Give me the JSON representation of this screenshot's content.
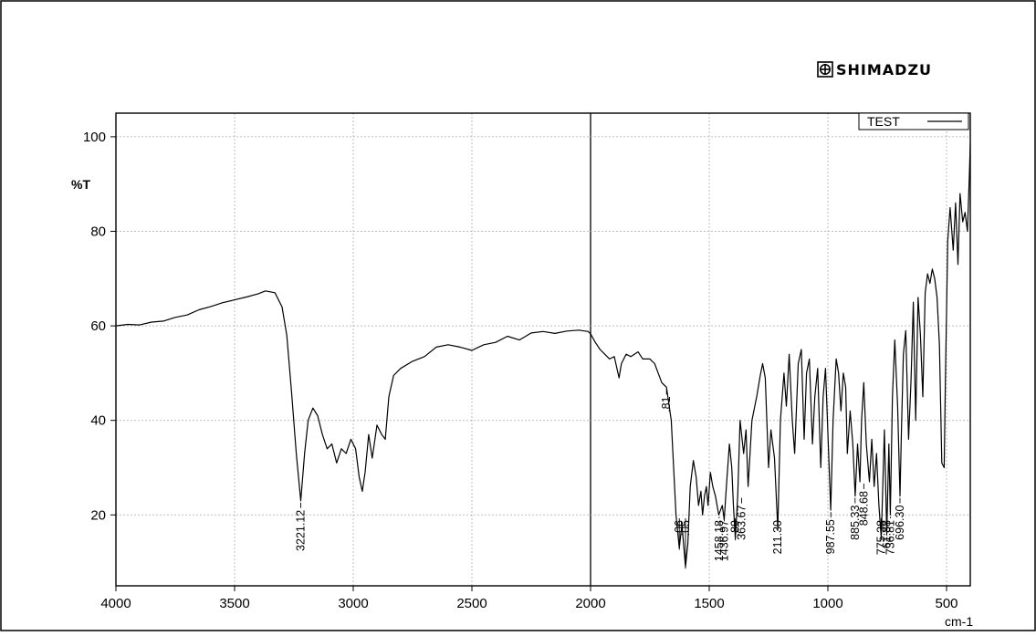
{
  "brand": {
    "name": "SHIMADZU",
    "icon": "shimadzu-logo-icon"
  },
  "chart_data": {
    "type": "line",
    "title": "",
    "xlabel": "cm-1",
    "ylabel": "%T",
    "xlim": [
      4000,
      400
    ],
    "ylim": [
      5,
      105
    ],
    "x_reversed": true,
    "grid": true,
    "x_ticks": [
      4000,
      3500,
      3000,
      2500,
      2000,
      1500,
      1000,
      500
    ],
    "x_tick_labels": [
      "4000",
      "3500",
      "3000",
      "2500",
      "2000",
      "1500",
      "1000",
      "500"
    ],
    "y_ticks": [
      20,
      40,
      60,
      80,
      100
    ],
    "y_tick_labels": [
      "20",
      "40",
      "60",
      "80",
      "100"
    ],
    "legend": {
      "position": "top-right",
      "entries": [
        "TEST"
      ]
    },
    "series": [
      {
        "name": "TEST",
        "points": [
          [
            4000,
            60
          ],
          [
            3950,
            60.3
          ],
          [
            3900,
            60.2
          ],
          [
            3850,
            60.8
          ],
          [
            3800,
            61
          ],
          [
            3750,
            61.8
          ],
          [
            3700,
            62.3
          ],
          [
            3650,
            63.4
          ],
          [
            3600,
            64.1
          ],
          [
            3550,
            64.9
          ],
          [
            3500,
            65.5
          ],
          [
            3450,
            66.1
          ],
          [
            3400,
            66.8
          ],
          [
            3370,
            67.4
          ],
          [
            3330,
            67
          ],
          [
            3300,
            64
          ],
          [
            3280,
            58
          ],
          [
            3260,
            46
          ],
          [
            3240,
            33
          ],
          [
            3221,
            23
          ],
          [
            3205,
            33
          ],
          [
            3190,
            40
          ],
          [
            3170,
            42.6
          ],
          [
            3150,
            41
          ],
          [
            3130,
            37
          ],
          [
            3110,
            34
          ],
          [
            3090,
            35
          ],
          [
            3070,
            31
          ],
          [
            3050,
            34
          ],
          [
            3030,
            33
          ],
          [
            3010,
            36
          ],
          [
            2990,
            34
          ],
          [
            2975,
            28
          ],
          [
            2962,
            25
          ],
          [
            2950,
            29
          ],
          [
            2935,
            37
          ],
          [
            2920,
            32
          ],
          [
            2900,
            39
          ],
          [
            2880,
            37
          ],
          [
            2865,
            36
          ],
          [
            2850,
            45
          ],
          [
            2830,
            49.5
          ],
          [
            2800,
            51
          ],
          [
            2750,
            52.5
          ],
          [
            2700,
            53.5
          ],
          [
            2650,
            55.5
          ],
          [
            2600,
            56
          ],
          [
            2550,
            55.5
          ],
          [
            2500,
            54.8
          ],
          [
            2450,
            56
          ],
          [
            2400,
            56.5
          ],
          [
            2350,
            57.8
          ],
          [
            2300,
            57
          ],
          [
            2250,
            58.5
          ],
          [
            2200,
            58.8
          ],
          [
            2150,
            58.4
          ],
          [
            2100,
            58.9
          ],
          [
            2050,
            59.1
          ],
          [
            2010,
            58.8
          ],
          [
            2000,
            58.3
          ],
          [
            1980,
            56.5
          ],
          [
            1960,
            55
          ],
          [
            1940,
            54
          ],
          [
            1920,
            53
          ],
          [
            1900,
            53.5
          ],
          [
            1880,
            49
          ],
          [
            1870,
            52
          ],
          [
            1850,
            54
          ],
          [
            1830,
            53.5
          ],
          [
            1800,
            54.5
          ],
          [
            1780,
            53
          ],
          [
            1750,
            53
          ],
          [
            1730,
            52
          ],
          [
            1715,
            50
          ],
          [
            1700,
            48
          ],
          [
            1680,
            47
          ],
          [
            1660,
            40
          ],
          [
            1640,
            20
          ],
          [
            1626,
            13
          ],
          [
            1615,
            18
          ],
          [
            1600,
            9
          ],
          [
            1590,
            14
          ],
          [
            1580,
            26
          ],
          [
            1567,
            31.5
          ],
          [
            1555,
            28
          ],
          [
            1545,
            22
          ],
          [
            1535,
            25
          ],
          [
            1528,
            20
          ],
          [
            1520,
            24
          ],
          [
            1512,
            26
          ],
          [
            1505,
            22
          ],
          [
            1495,
            29
          ],
          [
            1485,
            26
          ],
          [
            1474,
            24
          ],
          [
            1460,
            20
          ],
          [
            1445,
            22
          ],
          [
            1437,
            19
          ],
          [
            1425,
            28
          ],
          [
            1415,
            35
          ],
          [
            1405,
            30
          ],
          [
            1398,
            22
          ],
          [
            1390,
            15
          ],
          [
            1380,
            24
          ],
          [
            1370,
            40
          ],
          [
            1355,
            33
          ],
          [
            1345,
            38
          ],
          [
            1336,
            26
          ],
          [
            1320,
            40
          ],
          [
            1300,
            45
          ],
          [
            1285,
            49.5
          ],
          [
            1275,
            52
          ],
          [
            1264,
            49
          ],
          [
            1250,
            30
          ],
          [
            1240,
            38
          ],
          [
            1225,
            32
          ],
          [
            1211,
            17
          ],
          [
            1200,
            40
          ],
          [
            1185,
            50
          ],
          [
            1175,
            43
          ],
          [
            1163,
            54
          ],
          [
            1150,
            40
          ],
          [
            1140,
            33
          ],
          [
            1125,
            52
          ],
          [
            1112,
            55
          ],
          [
            1100,
            36
          ],
          [
            1090,
            50
          ],
          [
            1078,
            53
          ],
          [
            1065,
            35
          ],
          [
            1055,
            45
          ],
          [
            1043,
            51
          ],
          [
            1030,
            30
          ],
          [
            1020,
            45
          ],
          [
            1010,
            51
          ],
          [
            988,
            21
          ],
          [
            978,
            40
          ],
          [
            965,
            53
          ],
          [
            955,
            50
          ],
          [
            945,
            42
          ],
          [
            935,
            50
          ],
          [
            925,
            47
          ],
          [
            918,
            33
          ],
          [
            906,
            42
          ],
          [
            895,
            35
          ],
          [
            885,
            24
          ],
          [
            875,
            35
          ],
          [
            865,
            27
          ],
          [
            858,
            40
          ],
          [
            849,
            48
          ],
          [
            838,
            35
          ],
          [
            825,
            27
          ],
          [
            815,
            36
          ],
          [
            805,
            26
          ],
          [
            795,
            33
          ],
          [
            785,
            22
          ],
          [
            775,
            15
          ],
          [
            762,
            38
          ],
          [
            752,
            16
          ],
          [
            743,
            35
          ],
          [
            737,
            20
          ],
          [
            728,
            45
          ],
          [
            718,
            57
          ],
          [
            706,
            43
          ],
          [
            696,
            24
          ],
          [
            690,
            38
          ],
          [
            682,
            54
          ],
          [
            672,
            59
          ],
          [
            660,
            36
          ],
          [
            650,
            48
          ],
          [
            640,
            65
          ],
          [
            630,
            40
          ],
          [
            620,
            66
          ],
          [
            610,
            58
          ],
          [
            600,
            45
          ],
          [
            590,
            67
          ],
          [
            580,
            71
          ],
          [
            570,
            69
          ],
          [
            560,
            72
          ],
          [
            550,
            70
          ],
          [
            540,
            66
          ],
          [
            530,
            56
          ],
          [
            520,
            31
          ],
          [
            510,
            30
          ],
          [
            505,
            48
          ],
          [
            495,
            78
          ],
          [
            485,
            85
          ],
          [
            472,
            76
          ],
          [
            462,
            86
          ],
          [
            452,
            73
          ],
          [
            443,
            88
          ],
          [
            432,
            82
          ],
          [
            422,
            84
          ],
          [
            412,
            80
          ],
          [
            404,
            92
          ],
          [
            400,
            98.5
          ]
        ]
      }
    ],
    "annotations": [
      {
        "x": 3221.12,
        "y": 23,
        "label": "3221.12"
      },
      {
        "x": 1626,
        "y": 13,
        "label": ".06"
      },
      {
        "x": 1600,
        "y": 9,
        "label": ".05"
      },
      {
        "x": 1458.18,
        "y": 20,
        "label": "1458.18"
      },
      {
        "x": 1436.97,
        "y": 19,
        "label": "1436.97"
      },
      {
        "x": 1390,
        "y": 15,
        "label": ".89"
      },
      {
        "x": 1363.67,
        "y": 24,
        "label": "363.67"
      },
      {
        "x": 1211.3,
        "y": 17,
        "label": "211.30"
      },
      {
        "x": 987.55,
        "y": 21,
        "label": "987.55"
      },
      {
        "x": 885.33,
        "y": 24,
        "label": "885.33"
      },
      {
        "x": 848.68,
        "y": 27,
        "label": "848.68"
      },
      {
        "x": 775.38,
        "y": 15,
        "label": "775.38"
      },
      {
        "x": 752,
        "y": 16,
        "label": "61.88"
      },
      {
        "x": 736.81,
        "y": 20,
        "label": "736.81"
      },
      {
        "x": 696.3,
        "y": 24,
        "label": "696.30"
      },
      {
        "x": 1680,
        "y": 47,
        "label": ".81"
      }
    ]
  }
}
